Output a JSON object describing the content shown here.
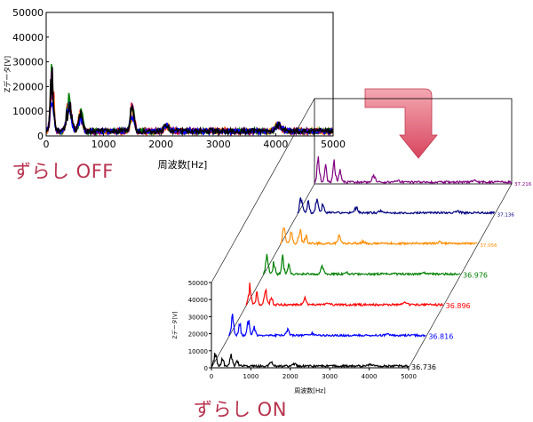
{
  "captions": {
    "off": "ずらし OFF",
    "on": "ずらし ON"
  },
  "colors": {
    "caption": "#b8324e",
    "arrow_light": "#f4a8b2",
    "arrow_dark": "#d8455e"
  },
  "chart_data": [
    {
      "id": "chart-off",
      "type": "line",
      "title": "",
      "xlabel": "周波数[Hz]",
      "ylabel": "Zデータ[V]",
      "xlim": [
        0,
        5000
      ],
      "ylim": [
        0,
        50000
      ],
      "xticks": [
        0,
        1000,
        2000,
        3000,
        4000,
        5000
      ],
      "yticks": [
        0,
        10000,
        20000,
        30000,
        40000,
        50000
      ],
      "grid": false,
      "legend": "none",
      "peaks_hz": [
        100,
        400,
        1500,
        4050
      ],
      "series": [
        {
          "color": "#ff0000",
          "peak_max": 27000
        },
        {
          "color": "#ff8c00",
          "peak_max": 22000
        },
        {
          "color": "#008000",
          "peak_max": 29000
        },
        {
          "color": "#800080",
          "peak_max": 24000
        },
        {
          "color": "#0000ff",
          "peak_max": 20000
        },
        {
          "color": "#000000",
          "peak_max": 25000
        }
      ]
    },
    {
      "id": "chart-on",
      "type": "line",
      "title": "",
      "xlabel": "周波数[Hz]",
      "ylabel": "Zデータ[V]",
      "xlim": [
        0,
        5000
      ],
      "ylim": [
        0,
        50000
      ],
      "xticks": [
        0,
        1000,
        2000,
        3000,
        4000,
        5000
      ],
      "yticks": [
        0,
        10000,
        20000,
        30000,
        40000,
        50000
      ],
      "grid": false,
      "legend": "none",
      "depth_axis_label": "",
      "series": [
        {
          "label": "36.736",
          "color": "#000000",
          "peak_max": 17000
        },
        {
          "label": "36.816",
          "color": "#0000ff",
          "peak_max": 22000
        },
        {
          "label": "36.896",
          "color": "#ff0000",
          "peak_max": 24000
        },
        {
          "label": "36.976",
          "color": "#008000",
          "peak_max": 26000
        },
        {
          "label": "37.056",
          "color": "#ff8c00",
          "peak_max": 25000
        },
        {
          "label": "37.136",
          "color": "#000080",
          "peak_max": 23000
        },
        {
          "label": "37.216",
          "color": "#800080",
          "peak_max": 29000
        }
      ]
    }
  ]
}
